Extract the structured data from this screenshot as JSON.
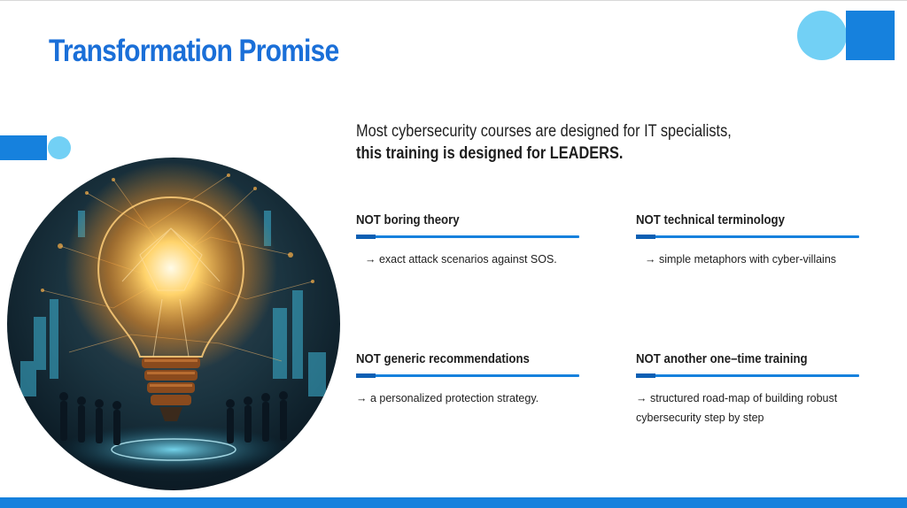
{
  "slide": {
    "title": "Transformation Promise",
    "intro_line1": "Most cybersecurity courses are designed for IT specialists,",
    "intro_line2": "this training is designed for LEADERS."
  },
  "cards": [
    {
      "heading": "NOT boring theory",
      "desc": "→ exact attack scenarios against SOS."
    },
    {
      "heading": "NOT technical terminology",
      "desc": "→ simple metaphors with cyber-villains"
    },
    {
      "heading": "NOT generic recommendations",
      "desc": "→ a personalized protection strategy."
    },
    {
      "heading": "NOT another one–time training",
      "desc_line1": "→ structured road-map of building robust",
      "desc_line2": "cybersecurity step by step"
    }
  ],
  "colors": {
    "accent_blue": "#1681dd",
    "light_blue": "#72d0f5",
    "title_blue": "#1a6fd8",
    "text": "#1e1e1e"
  }
}
